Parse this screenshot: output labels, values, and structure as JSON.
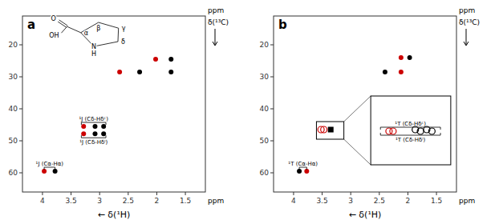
{
  "chart_data": [
    {
      "type": "scatter",
      "title": "a",
      "xlabel": "← δ(¹H)",
      "ylabel": "δ(¹³C)",
      "x_unit": "ppm",
      "y_unit": "ppm",
      "xlim": [
        4.35,
        1.15
      ],
      "ylim": [
        66,
        11
      ],
      "xticks": [
        4,
        3.5,
        3,
        2.5,
        2,
        1.5
      ],
      "yticks": [
        20,
        30,
        40,
        50,
        60
      ],
      "series": [
        {
          "color": "#cc0000",
          "marker": "circle",
          "x": [
            2.02,
            2.65,
            3.28,
            3.28,
            3.97
          ],
          "values": [
            24.5,
            28.5,
            45.5,
            47.8,
            59.5
          ]
        },
        {
          "color": "#000000",
          "marker": "circle",
          "x": [
            1.75,
            2.3,
            1.75,
            3.08,
            2.93,
            3.08,
            2.93,
            3.78
          ],
          "values": [
            24.5,
            28.5,
            28.5,
            45.5,
            45.5,
            47.8,
            47.8,
            59.5
          ]
        }
      ],
      "annotations": [
        {
          "type": "bracket",
          "text": "¹J (Cδ-Hδᶜ)",
          "x": [
            3.32,
            2.89
          ],
          "y": 45.5,
          "position": "above"
        },
        {
          "type": "bracket",
          "text": "¹J (Cδ-Hδˡ)",
          "x": [
            3.32,
            2.89
          ],
          "y": 47.8,
          "position": "below"
        },
        {
          "type": "bracket",
          "text": "¹J (Cα-Hα)",
          "x": [
            3.97,
            3.78
          ],
          "y": 59.5,
          "position": "above"
        },
        {
          "type": "structure",
          "text": "α"
        },
        {
          "type": "structure",
          "text": "β"
        },
        {
          "type": "structure",
          "text": "γ"
        },
        {
          "type": "structure",
          "text": "δ"
        },
        {
          "type": "structure",
          "text": "N"
        },
        {
          "type": "structure",
          "text": "H"
        },
        {
          "type": "structure",
          "text": "O"
        },
        {
          "type": "structure",
          "text": "OH"
        }
      ]
    },
    {
      "type": "scatter",
      "title": "b",
      "xlabel": "← δ(¹H)",
      "ylabel": "δ(¹³C)",
      "x_unit": "ppm",
      "y_unit": "ppm",
      "xlim": [
        4.35,
        1.15
      ],
      "ylim": [
        66,
        11
      ],
      "xticks": [
        4,
        3.5,
        3,
        2.5,
        2,
        1.5
      ],
      "yticks": [
        20,
        30,
        40,
        50,
        60
      ],
      "series": [
        {
          "color": "#cc0000",
          "marker": "circle",
          "x": [
            2.12,
            2.12,
            3.77
          ],
          "values": [
            24.0,
            28.5,
            59.5
          ]
        },
        {
          "color": "#000000",
          "marker": "circle",
          "x": [
            1.97,
            2.4,
            3.9
          ],
          "values": [
            24.0,
            28.5,
            59.5
          ]
        },
        {
          "color": "#000000",
          "marker": "square",
          "x": [
            3.35
          ],
          "values": [
            46.5
          ]
        },
        {
          "color": "#cc0000",
          "marker": "open-circle",
          "x": [
            3.52,
            3.47,
            2.33,
            2.26
          ],
          "values": [
            46.5,
            46.5,
            47.0,
            47.0
          ]
        },
        {
          "color": "#000000",
          "marker": "open-circle",
          "x": [
            1.87,
            1.67,
            1.78,
            1.58
          ],
          "values": [
            46.5,
            46.5,
            47.0,
            47.0
          ]
        }
      ],
      "annotations": [
        {
          "type": "box",
          "x": [
            3.6,
            3.12
          ],
          "y": [
            44.0,
            49.5
          ]
        },
        {
          "type": "inset",
          "x": [
            2.65,
            1.25
          ],
          "y": [
            36.0,
            57.5
          ]
        },
        {
          "type": "bracket",
          "text": "¹T (Cδ-Hδᶜ)",
          "x": [
            2.48,
            1.43
          ],
          "y": 47.0,
          "position": "above"
        },
        {
          "type": "bracket",
          "text": "¹T (Cδ-Hδˡ)",
          "x": [
            2.48,
            1.43
          ],
          "y": 47.0,
          "position": "below"
        },
        {
          "type": "bracket",
          "text": "¹T (Cα-Hα)",
          "x": [
            3.9,
            3.77
          ],
          "y": 59.5,
          "position": "above"
        }
      ]
    }
  ]
}
